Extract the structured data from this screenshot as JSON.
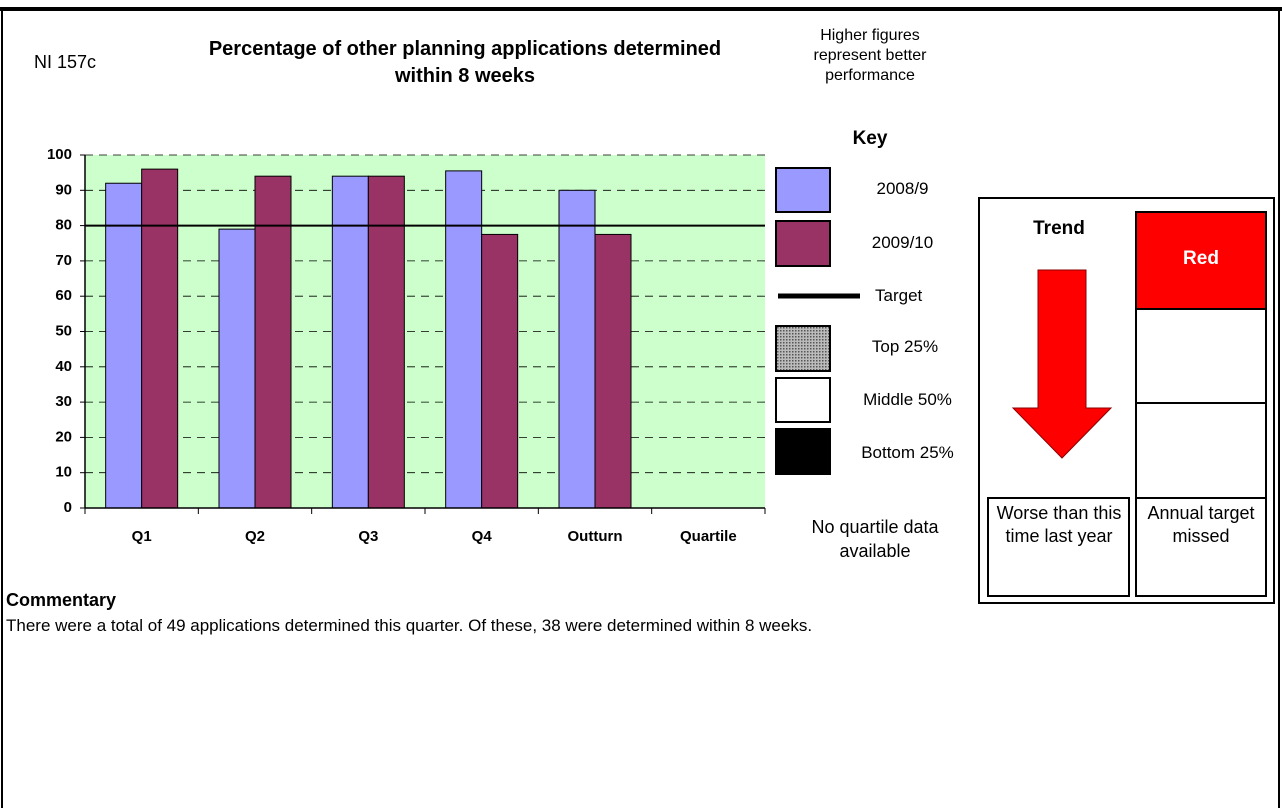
{
  "header": {
    "code": "NI 157c",
    "note": "Higher figures represent better performance"
  },
  "chart_data": {
    "type": "bar",
    "title": "Percentage of other planning applications determined within 8 weeks",
    "categories": [
      "Q1",
      "Q2",
      "Q3",
      "Q4",
      "Outturn",
      "Quartile"
    ],
    "series": [
      {
        "name": "2008/9",
        "color": "#9999ff",
        "values": [
          92,
          79,
          94,
          95.5,
          90,
          null
        ]
      },
      {
        "name": "2009/10",
        "color": "#993366",
        "values": [
          96,
          94,
          94,
          77.5,
          77.5,
          null
        ]
      }
    ],
    "target": {
      "name": "Target",
      "value": 80
    },
    "ylim": [
      0,
      100
    ],
    "yticks": [
      0,
      10,
      20,
      30,
      40,
      50,
      60,
      70,
      80,
      90,
      100
    ],
    "grid": true,
    "background": "#ccffcc"
  },
  "key": {
    "title": "Key",
    "items": [
      "Top 25%",
      "Middle 50%",
      "Bottom 25%"
    ]
  },
  "quartile_note": "No quartile data available",
  "trend": {
    "title": "Trend",
    "text": "Worse than this time last year"
  },
  "rating": {
    "label": "Red",
    "text": "Annual target missed"
  },
  "commentary": {
    "title": "Commentary",
    "text": "There were a total of 49 applications determined this quarter. Of these, 38 were determined within 8 weeks."
  }
}
